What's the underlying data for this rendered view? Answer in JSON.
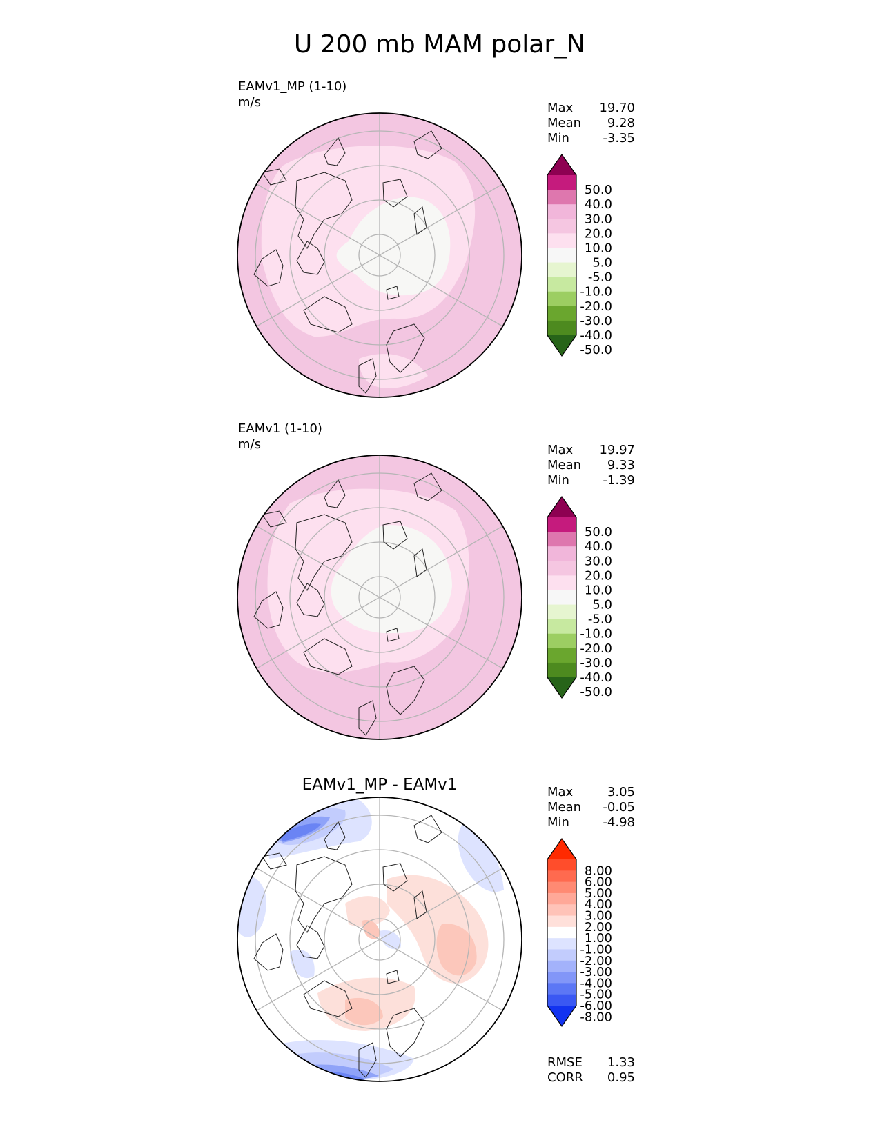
{
  "figure_title": "U 200 mb MAM polar_N",
  "chart_data": [
    {
      "type": "heatmap",
      "projection": "north-polar-stereographic",
      "title": "EAMv1_MP (1-10)",
      "units": "m/s",
      "stats": [
        {
          "label": "Max",
          "value": "19.70"
        },
        {
          "label": "Mean",
          "value": "9.28"
        },
        {
          "label": "Min",
          "value": "-3.35"
        }
      ],
      "colorbar": {
        "ticks": [
          "50.0",
          "40.0",
          "30.0",
          "20.0",
          "10.0",
          "5.0",
          "-5.0",
          "-10.0",
          "-20.0",
          "-30.0",
          "-40.0",
          "-50.0"
        ],
        "colors": [
          "#8e0152",
          "#c51b7d",
          "#de77ae",
          "#f1b6da",
          "#f5c6e1",
          "#fde0ef",
          "#f7f7f7",
          "#e6f5d0",
          "#c7e9a0",
          "#9cce62",
          "#6aa62e",
          "#4d8a1f",
          "#276419"
        ]
      },
      "field": {
        "background": "#f3c6e1",
        "regions": [
          {
            "level": "10.0",
            "color": "#fde0ef"
          },
          {
            "level": "5.0",
            "color": "#f7f7f5"
          }
        ]
      }
    },
    {
      "type": "heatmap",
      "projection": "north-polar-stereographic",
      "title": "EAMv1 (1-10)",
      "units": "m/s",
      "stats": [
        {
          "label": "Max",
          "value": "19.97"
        },
        {
          "label": "Mean",
          "value": "9.33"
        },
        {
          "label": "Min",
          "value": "-1.39"
        }
      ],
      "colorbar": {
        "ticks": [
          "50.0",
          "40.0",
          "30.0",
          "20.0",
          "10.0",
          "5.0",
          "-5.0",
          "-10.0",
          "-20.0",
          "-30.0",
          "-40.0",
          "-50.0"
        ],
        "colors": [
          "#8e0152",
          "#c51b7d",
          "#de77ae",
          "#f1b6da",
          "#f5c6e1",
          "#fde0ef",
          "#f7f7f7",
          "#e6f5d0",
          "#c7e9a0",
          "#9cce62",
          "#6aa62e",
          "#4d8a1f",
          "#276419"
        ]
      },
      "field": {
        "background": "#f3c6e1",
        "regions": [
          {
            "level": "10.0",
            "color": "#fde0ef"
          },
          {
            "level": "5.0",
            "color": "#f7f7f5"
          }
        ]
      }
    },
    {
      "type": "heatmap",
      "projection": "north-polar-stereographic",
      "title": "EAMv1_MP - EAMv1",
      "units": "",
      "stats": [
        {
          "label": "Max",
          "value": "3.05"
        },
        {
          "label": "Mean",
          "value": "-0.05"
        },
        {
          "label": "Min",
          "value": "-4.98"
        }
      ],
      "metrics": [
        {
          "label": "RMSE",
          "value": "1.33"
        },
        {
          "label": "CORR",
          "value": "0.95"
        }
      ],
      "colorbar": {
        "ticks": [
          "8.00",
          "6.00",
          "5.00",
          "4.00",
          "3.00",
          "2.00",
          "1.00",
          "-1.00",
          "-2.00",
          "-3.00",
          "-4.00",
          "-5.00",
          "-6.00",
          "-8.00"
        ],
        "colors": [
          "#ff2a00",
          "#ff4d2b",
          "#ff6a4f",
          "#ff8a73",
          "#ffa898",
          "#ffc3b8",
          "#ffe0da",
          "#ffffff",
          "#dde3ff",
          "#c2ccfd",
          "#a3b2fb",
          "#8296f8",
          "#5c77f5",
          "#3a58f3",
          "#1233f0"
        ]
      },
      "field": {
        "background": "#ffffff",
        "regions": [
          {
            "level": "1.00",
            "color": "#fde0da"
          },
          {
            "level": "2.00",
            "color": "#fcc7bb"
          },
          {
            "level": "-1.00",
            "color": "#dde3ff"
          },
          {
            "level": "-2.00",
            "color": "#c2ccfd"
          },
          {
            "level": "-3.00",
            "color": "#8fa3f8"
          },
          {
            "level": "-4.00",
            "color": "#6a84f4"
          }
        ]
      }
    }
  ]
}
